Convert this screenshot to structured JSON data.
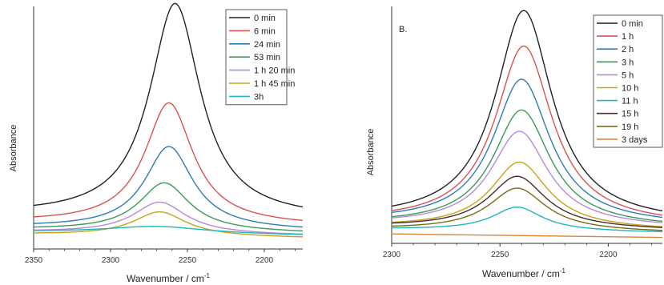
{
  "chart_data": [
    {
      "type": "line",
      "panel_label": "",
      "xlabel": "Wavenumber / cm",
      "xlabel_sup": "-1",
      "ylabel": "Absorbance",
      "xlim": [
        2350,
        2175
      ],
      "x_ticks": [
        2350,
        2300,
        2250,
        2200
      ],
      "x_tick_labels": [
        "2350",
        "2300",
        "2250",
        "2200"
      ],
      "y_ticks_shown": false,
      "legend_position": "top-right",
      "series": [
        {
          "name": "0 min",
          "color": "#222222",
          "peak_x": 2258,
          "peak_height": 0.88,
          "baseline": 0.14,
          "width": 20
        },
        {
          "name": "6 min",
          "color": "#d9534f",
          "peak_x": 2262,
          "peak_height": 0.5,
          "baseline": 0.11,
          "width": 19
        },
        {
          "name": "24 min",
          "color": "#2e7bb6",
          "peak_x": 2262,
          "peak_height": 0.34,
          "baseline": 0.09,
          "width": 19
        },
        {
          "name": "53 min",
          "color": "#3a9a5b",
          "peak_x": 2265,
          "peak_height": 0.2,
          "baseline": 0.08,
          "width": 20
        },
        {
          "name": "1 h 20 min",
          "color": "#b58bd8",
          "peak_x": 2268,
          "peak_height": 0.13,
          "baseline": 0.07,
          "width": 21
        },
        {
          "name": "1 h 45 min",
          "color": "#c7a21a",
          "peak_x": 2268,
          "peak_height": 0.1,
          "baseline": 0.06,
          "width": 21
        },
        {
          "name": "3h",
          "color": "#1fb5c1",
          "peak_x": 2270,
          "peak_height": 0.03,
          "baseline": 0.07,
          "width": 40
        }
      ]
    },
    {
      "type": "line",
      "panel_label": "B.",
      "xlabel": "Wavenumber / cm",
      "xlabel_sup": "-1",
      "ylabel": "Absorbance",
      "xlim": [
        2300,
        2175
      ],
      "x_ticks": [
        2300,
        2250,
        2200
      ],
      "x_tick_labels": [
        "2300",
        "2250",
        "2200"
      ],
      "y_ticks_shown": false,
      "legend_position": "top-right",
      "series": [
        {
          "name": "0 min",
          "color": "#222222",
          "peak_x": 2239,
          "peak_height": 0.89,
          "baseline": 0.1,
          "width": 16
        },
        {
          "name": "1 h",
          "color": "#d9534f",
          "peak_x": 2239,
          "peak_height": 0.75,
          "baseline": 0.09,
          "width": 16
        },
        {
          "name": "2 h",
          "color": "#2e7bb6",
          "peak_x": 2240,
          "peak_height": 0.61,
          "baseline": 0.09,
          "width": 16
        },
        {
          "name": "3 h",
          "color": "#3a9a5b",
          "peak_x": 2240,
          "peak_height": 0.49,
          "baseline": 0.08,
          "width": 16
        },
        {
          "name": "5 h",
          "color": "#b58bd8",
          "peak_x": 2241,
          "peak_height": 0.4,
          "baseline": 0.08,
          "width": 16
        },
        {
          "name": "10 h",
          "color": "#c7a21a",
          "peak_x": 2241,
          "peak_height": 0.28,
          "baseline": 0.07,
          "width": 16
        },
        {
          "name": "11 h",
          "color": "#1fb5c1",
          "peak_x": 2242,
          "peak_height": 0.1,
          "baseline": 0.06,
          "width": 14
        },
        {
          "name": "15 h",
          "color": "#4a2c2a",
          "peak_x": 2242,
          "peak_height": 0.22,
          "baseline": 0.07,
          "width": 16
        },
        {
          "name": "19 h",
          "color": "#7a6a12",
          "peak_x": 2242,
          "peak_height": 0.18,
          "baseline": 0.06,
          "width": 16
        },
        {
          "name": "3 days",
          "color": "#d8883a",
          "peak_x": 2240,
          "peak_height": 0.0,
          "baseline": 0.04,
          "width": 16
        }
      ]
    }
  ]
}
